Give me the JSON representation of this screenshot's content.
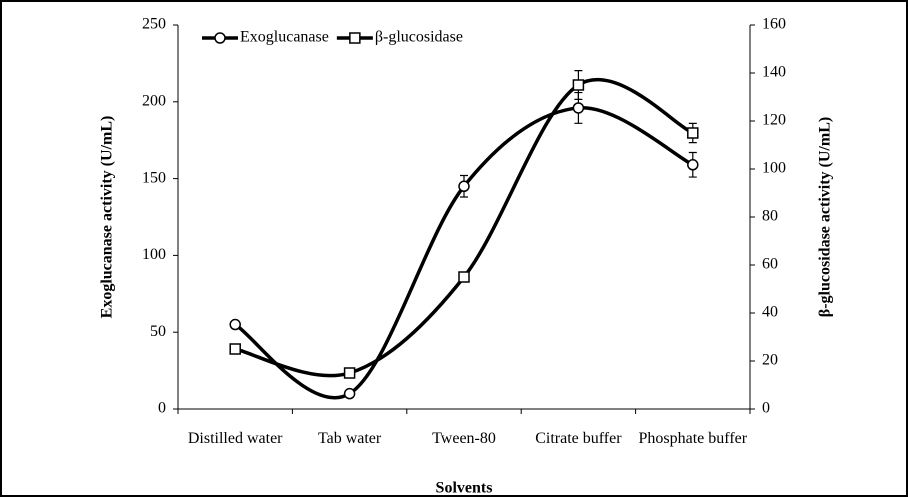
{
  "chart_data": {
    "type": "line",
    "x_label": "Solvents",
    "y_label": "Exoglucanase activity (U/mL)",
    "y2_label": "β-glucosidase activity (U/mL)",
    "categories": [
      "Distilled water",
      "Tab water",
      "Tween-80",
      "Citrate buffer",
      "Phosphate buffer"
    ],
    "series": [
      {
        "name": "Exoglucanase",
        "color": "#000000",
        "marker": "circle",
        "values": [
          55,
          10,
          145,
          196,
          159
        ],
        "errors": [
          2,
          1,
          7,
          10,
          8
        ]
      },
      {
        "name": "β-glucosidase",
        "color": "#000000",
        "marker": "square",
        "axis": "y2",
        "values": [
          25,
          15,
          55,
          135,
          115
        ],
        "errors": [
          1,
          1,
          2,
          6,
          4
        ]
      }
    ],
    "ylim": [
      0,
      250
    ],
    "yticks": [
      0,
      50,
      100,
      150,
      200,
      250
    ],
    "y2lim": [
      0,
      160
    ],
    "y2ticks": [
      0,
      20,
      40,
      60,
      80,
      100,
      120,
      140,
      160
    ],
    "smooth": true,
    "grid": false,
    "legend": "top-left"
  }
}
